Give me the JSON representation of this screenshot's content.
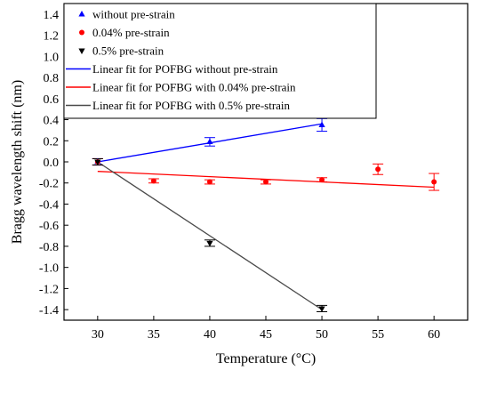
{
  "chart_data": {
    "type": "scatter",
    "xlabel": "Temperature (°C)",
    "ylabel": "Bragg wavelength shift (nm)",
    "xlim": [
      27,
      63
    ],
    "ylim": [
      -1.5,
      1.5
    ],
    "xticks": [
      30,
      35,
      40,
      45,
      50,
      55,
      60
    ],
    "yticks": [
      -1.4,
      -1.2,
      -1.0,
      -0.8,
      -0.6,
      -0.4,
      -0.2,
      0.0,
      0.2,
      0.4,
      0.6,
      0.8,
      1.0,
      1.2,
      1.4
    ],
    "x_tick_labels": [
      "30",
      "35",
      "40",
      "45",
      "50",
      "55",
      "60"
    ],
    "y_tick_labels": [
      "-1.4",
      "-1.2",
      "-1.0",
      "-0.8",
      "-0.6",
      "-0.4",
      "-0.2",
      "0.0",
      "0.2",
      "0.4",
      "0.6",
      "0.8",
      "1.0",
      "1.2",
      "1.4"
    ],
    "grid": false,
    "legend_position": "top-left",
    "series": [
      {
        "name": "without pre-strain",
        "marker": "triangle-up",
        "color": "#0000ff",
        "x": [
          30,
          40,
          50
        ],
        "y": [
          0.0,
          0.19,
          0.35
        ],
        "err": [
          0.03,
          0.04,
          0.06
        ]
      },
      {
        "name": "0.04% pre-strain",
        "marker": "circle",
        "color": "#ff0000",
        "x": [
          30,
          35,
          40,
          45,
          50,
          55,
          60
        ],
        "y": [
          0.0,
          -0.18,
          -0.19,
          -0.19,
          -0.17,
          -0.07,
          -0.19
        ],
        "err": [
          0.03,
          0.02,
          0.02,
          0.02,
          0.02,
          0.05,
          0.08
        ]
      },
      {
        "name": "0.5% pre-strain",
        "marker": "triangle-down",
        "color": "#000000",
        "x": [
          30,
          40,
          50
        ],
        "y": [
          0.0,
          -0.77,
          -1.39
        ],
        "err": [
          0.03,
          0.03,
          0.03
        ]
      }
    ],
    "fits": [
      {
        "name": "Linear fit for POFBG without pre-strain",
        "color": "#0000ff",
        "x": [
          30,
          50
        ],
        "y": [
          0.0,
          0.36
        ]
      },
      {
        "name": "Linear fit for POFBG with 0.04% pre-strain",
        "color": "#ff0000",
        "x": [
          30,
          60
        ],
        "y": [
          -0.09,
          -0.24
        ]
      },
      {
        "name": "Linear fit for POFBG with 0.5% pre-strain",
        "color": "#4a4a4a",
        "x": [
          30,
          50
        ],
        "y": [
          0.0,
          -1.4
        ]
      }
    ]
  }
}
